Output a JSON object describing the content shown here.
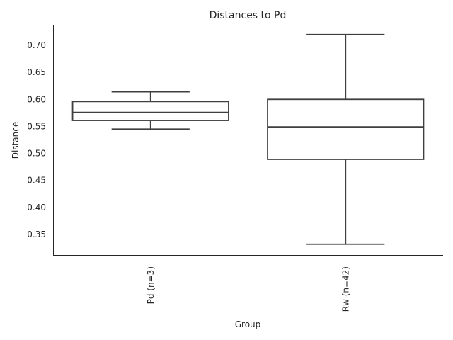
{
  "chart_data": {
    "type": "box",
    "title": "Distances to Pd",
    "xlabel": "Group",
    "ylabel": "Distance",
    "ylim": [
      0.312,
      0.738
    ],
    "yticks": [
      0.35,
      0.4,
      0.45,
      0.5,
      0.55,
      0.6,
      0.65,
      0.7
    ],
    "ytick_labels": [
      "0.35",
      "0.40",
      "0.45",
      "0.50",
      "0.55",
      "0.60",
      "0.65",
      "0.70"
    ],
    "grid": false,
    "categories": [
      "Pd (n=3)",
      "Rw (n=42)"
    ],
    "boxes": [
      {
        "category": "Pd (n=3)",
        "whisker_low": 0.545,
        "q1": 0.561,
        "median": 0.576,
        "q3": 0.596,
        "whisker_high": 0.614
      },
      {
        "category": "Rw (n=42)",
        "whisker_low": 0.332,
        "q1": 0.489,
        "median": 0.549,
        "q3": 0.6,
        "whisker_high": 0.72
      }
    ],
    "colors": {
      "box_edge": "#3f3f3f",
      "box_fill": "#ffffff",
      "text": "#262626",
      "spine": "#262626"
    }
  }
}
